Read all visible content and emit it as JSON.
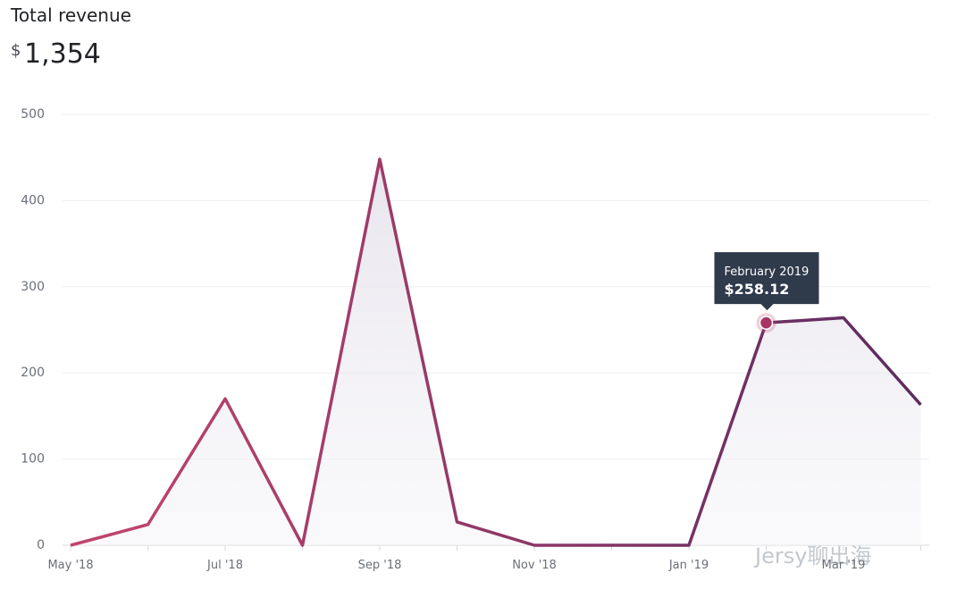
{
  "header": {
    "title": "Total revenue",
    "currency": "$",
    "total": "1,354"
  },
  "chart_data": {
    "type": "line",
    "categories": [
      "May '18",
      null,
      "Jul '18",
      null,
      "Sep '18",
      null,
      "Nov '18",
      null,
      "Jan '19",
      null,
      "Mar '19",
      null
    ],
    "values": [
      0,
      24,
      170,
      0,
      448,
      27,
      0,
      0,
      0,
      258.12,
      264,
      163
    ],
    "value_labels": [
      null,
      null,
      null,
      null,
      null,
      null,
      null,
      null,
      null,
      "$258.12",
      null,
      null
    ],
    "tooltip_title": "February 2019",
    "colors": [
      "#c4446d",
      "#5b2b60"
    ],
    "ylim": [
      0,
      500
    ],
    "yticks": [
      0,
      100,
      200,
      300,
      400,
      500
    ],
    "grid": true
  },
  "watermark": "Jersy聊出海"
}
